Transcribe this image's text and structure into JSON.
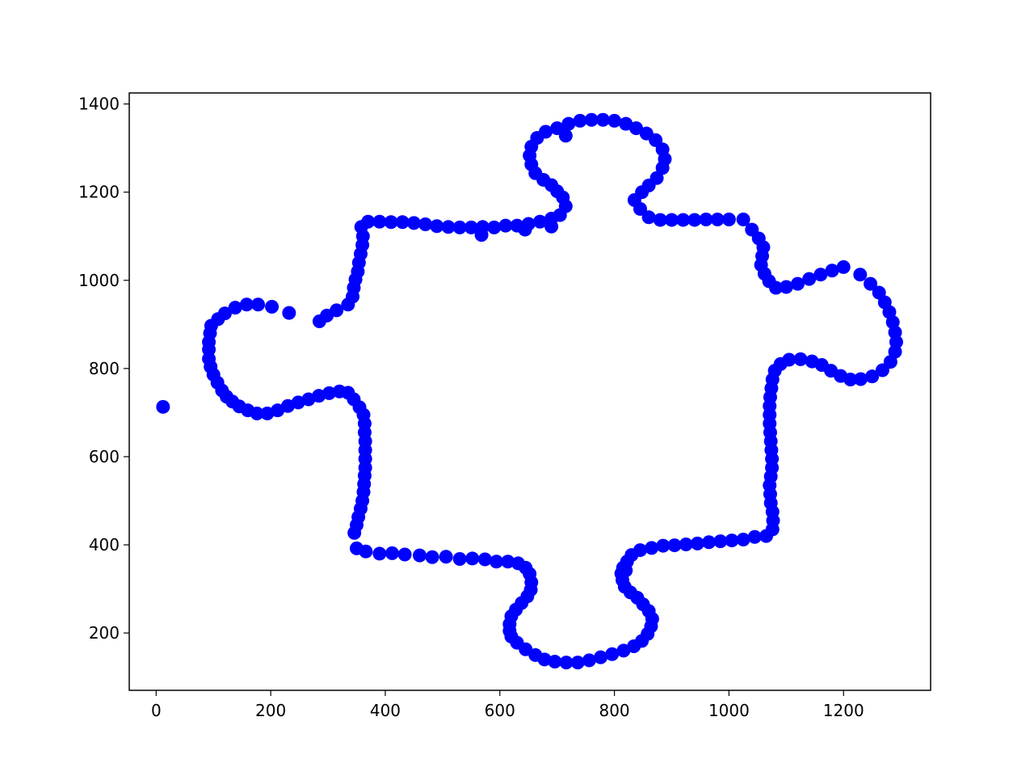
{
  "chart_data": {
    "type": "scatter",
    "title": "",
    "xlabel": "",
    "ylabel": "",
    "xlim": [
      -47,
      1352
    ],
    "ylim": [
      70,
      1425
    ],
    "xticks": [
      0,
      200,
      400,
      600,
      800,
      1000,
      1200
    ],
    "yticks": [
      200,
      400,
      600,
      800,
      1000,
      1200,
      1400
    ],
    "grid": false,
    "legend": "none",
    "marker_color": "#0000ff",
    "series": [
      {
        "points": [
          [
            12,
            713
          ],
          [
            232,
            926
          ],
          [
            202,
            940
          ],
          [
            178,
            945
          ],
          [
            158,
            945
          ],
          [
            138,
            938
          ],
          [
            120,
            925
          ],
          [
            108,
            912
          ],
          [
            96,
            897
          ],
          [
            94,
            880
          ],
          [
            92,
            860
          ],
          [
            92,
            843
          ],
          [
            92,
            822
          ],
          [
            95,
            804
          ],
          [
            100,
            786
          ],
          [
            107,
            768
          ],
          [
            115,
            750
          ],
          [
            123,
            736
          ],
          [
            133,
            725
          ],
          [
            145,
            714
          ],
          [
            160,
            705
          ],
          [
            176,
            698
          ],
          [
            194,
            698
          ],
          [
            212,
            705
          ],
          [
            230,
            715
          ],
          [
            248,
            723
          ],
          [
            266,
            730
          ],
          [
            284,
            738
          ],
          [
            302,
            744
          ],
          [
            320,
            748
          ],
          [
            335,
            745
          ],
          [
            345,
            730
          ],
          [
            355,
            712
          ],
          [
            362,
            695
          ],
          [
            364,
            675
          ],
          [
            364,
            655
          ],
          [
            365,
            635
          ],
          [
            365,
            615
          ],
          [
            365,
            595
          ],
          [
            365,
            575
          ],
          [
            364,
            557
          ],
          [
            363,
            538
          ],
          [
            362,
            520
          ],
          [
            360,
            500
          ],
          [
            357,
            482
          ],
          [
            353,
            463
          ],
          [
            350,
            445
          ],
          [
            346,
            427
          ],
          [
            350,
            392
          ],
          [
            366,
            385
          ],
          [
            390,
            380
          ],
          [
            412,
            381
          ],
          [
            434,
            378
          ],
          [
            460,
            376
          ],
          [
            482,
            372
          ],
          [
            506,
            373
          ],
          [
            530,
            368
          ],
          [
            552,
            369
          ],
          [
            574,
            367
          ],
          [
            594,
            362
          ],
          [
            614,
            362
          ],
          [
            632,
            358
          ],
          [
            645,
            348
          ],
          [
            652,
            334
          ],
          [
            655,
            315
          ],
          [
            654,
            298
          ],
          [
            648,
            283
          ],
          [
            638,
            268
          ],
          [
            628,
            253
          ],
          [
            620,
            238
          ],
          [
            617,
            220
          ],
          [
            617,
            205
          ],
          [
            620,
            192
          ],
          [
            630,
            178
          ],
          [
            645,
            163
          ],
          [
            662,
            150
          ],
          [
            678,
            140
          ],
          [
            696,
            135
          ],
          [
            716,
            133
          ],
          [
            736,
            133
          ],
          [
            756,
            138
          ],
          [
            776,
            145
          ],
          [
            796,
            152
          ],
          [
            816,
            160
          ],
          [
            834,
            170
          ],
          [
            848,
            182
          ],
          [
            858,
            198
          ],
          [
            864,
            215
          ],
          [
            866,
            232
          ],
          [
            860,
            250
          ],
          [
            850,
            265
          ],
          [
            840,
            280
          ],
          [
            828,
            292
          ],
          [
            818,
            305
          ],
          [
            814,
            320
          ],
          [
            812,
            335
          ],
          [
            815,
            348
          ],
          [
            822,
            362
          ],
          [
            830,
            377
          ],
          [
            845,
            388
          ],
          [
            865,
            393
          ],
          [
            885,
            398
          ],
          [
            905,
            399
          ],
          [
            925,
            401
          ],
          [
            945,
            403
          ],
          [
            965,
            406
          ],
          [
            985,
            408
          ],
          [
            1005,
            410
          ],
          [
            1025,
            412
          ],
          [
            1045,
            418
          ],
          [
            1065,
            420
          ],
          [
            1076,
            435
          ],
          [
            1077,
            455
          ],
          [
            1076,
            475
          ],
          [
            1073,
            495
          ],
          [
            1072,
            515
          ],
          [
            1071,
            535
          ],
          [
            1073,
            555
          ],
          [
            1075,
            575
          ],
          [
            1075,
            595
          ],
          [
            1074,
            615
          ],
          [
            1073,
            635
          ],
          [
            1072,
            655
          ],
          [
            1071,
            675
          ],
          [
            1071,
            695
          ],
          [
            1071,
            715
          ],
          [
            1072,
            735
          ],
          [
            1074,
            755
          ],
          [
            1076,
            775
          ],
          [
            1080,
            795
          ],
          [
            1090,
            810
          ],
          [
            1105,
            820
          ],
          [
            1125,
            821
          ],
          [
            1145,
            816
          ],
          [
            1162,
            808
          ],
          [
            1178,
            795
          ],
          [
            1195,
            783
          ],
          [
            1212,
            775
          ],
          [
            1230,
            776
          ],
          [
            1250,
            782
          ],
          [
            1268,
            796
          ],
          [
            1282,
            815
          ],
          [
            1290,
            838
          ],
          [
            1292,
            860
          ],
          [
            1290,
            882
          ],
          [
            1286,
            905
          ],
          [
            1280,
            928
          ],
          [
            1272,
            950
          ],
          [
            1262,
            972
          ],
          [
            1247,
            992
          ],
          [
            1229,
            1013
          ],
          [
            1200,
            1030
          ],
          [
            1180,
            1022
          ],
          [
            1160,
            1013
          ],
          [
            1140,
            1003
          ],
          [
            1120,
            992
          ],
          [
            1100,
            985
          ],
          [
            1082,
            983
          ],
          [
            1070,
            998
          ],
          [
            1062,
            1015
          ],
          [
            1056,
            1035
          ],
          [
            1058,
            1055
          ],
          [
            1060,
            1075
          ],
          [
            1052,
            1095
          ],
          [
            1040,
            1115
          ],
          [
            1025,
            1138
          ],
          [
            1000,
            1138
          ],
          [
            980,
            1138
          ],
          [
            960,
            1138
          ],
          [
            940,
            1137
          ],
          [
            920,
            1137
          ],
          [
            900,
            1137
          ],
          [
            880,
            1137
          ],
          [
            860,
            1143
          ],
          [
            845,
            1162
          ],
          [
            835,
            1182
          ],
          [
            848,
            1200
          ],
          [
            860,
            1215
          ],
          [
            874,
            1232
          ],
          [
            884,
            1255
          ],
          [
            888,
            1275
          ],
          [
            884,
            1297
          ],
          [
            872,
            1318
          ],
          [
            856,
            1333
          ],
          [
            838,
            1345
          ],
          [
            820,
            1355
          ],
          [
            800,
            1362
          ],
          [
            780,
            1364
          ],
          [
            760,
            1364
          ],
          [
            740,
            1362
          ],
          [
            720,
            1355
          ],
          [
            700,
            1345
          ],
          [
            680,
            1337
          ],
          [
            665,
            1323
          ],
          [
            655,
            1303
          ],
          [
            652,
            1283
          ],
          [
            655,
            1263
          ],
          [
            662,
            1243
          ],
          [
            676,
            1228
          ],
          [
            690,
            1216
          ],
          [
            700,
            1202
          ],
          [
            710,
            1188
          ],
          [
            715,
            1168
          ],
          [
            705,
            1148
          ],
          [
            690,
            1140
          ],
          [
            670,
            1133
          ],
          [
            650,
            1128
          ],
          [
            630,
            1124
          ],
          [
            610,
            1124
          ],
          [
            590,
            1120
          ],
          [
            570,
            1121
          ],
          [
            550,
            1120
          ],
          [
            530,
            1120
          ],
          [
            510,
            1121
          ],
          [
            490,
            1123
          ],
          [
            470,
            1127
          ],
          [
            450,
            1130
          ],
          [
            430,
            1132
          ],
          [
            410,
            1132
          ],
          [
            390,
            1133
          ],
          [
            370,
            1133
          ],
          [
            358,
            1121
          ],
          [
            361,
            1100
          ],
          [
            360,
            1080
          ],
          [
            357,
            1060
          ],
          [
            354,
            1040
          ],
          [
            352,
            1020
          ],
          [
            348,
            1002
          ],
          [
            345,
            983
          ],
          [
            343,
            963
          ],
          [
            335,
            945
          ],
          [
            315,
            932
          ],
          [
            298,
            920
          ],
          [
            285,
            907
          ],
          [
            568,
            1103
          ],
          [
            644,
            1115
          ],
          [
            690,
            1122
          ],
          [
            715,
            1328
          ],
          [
            816,
            338
          ],
          [
            820,
            342
          ]
        ]
      }
    ]
  }
}
